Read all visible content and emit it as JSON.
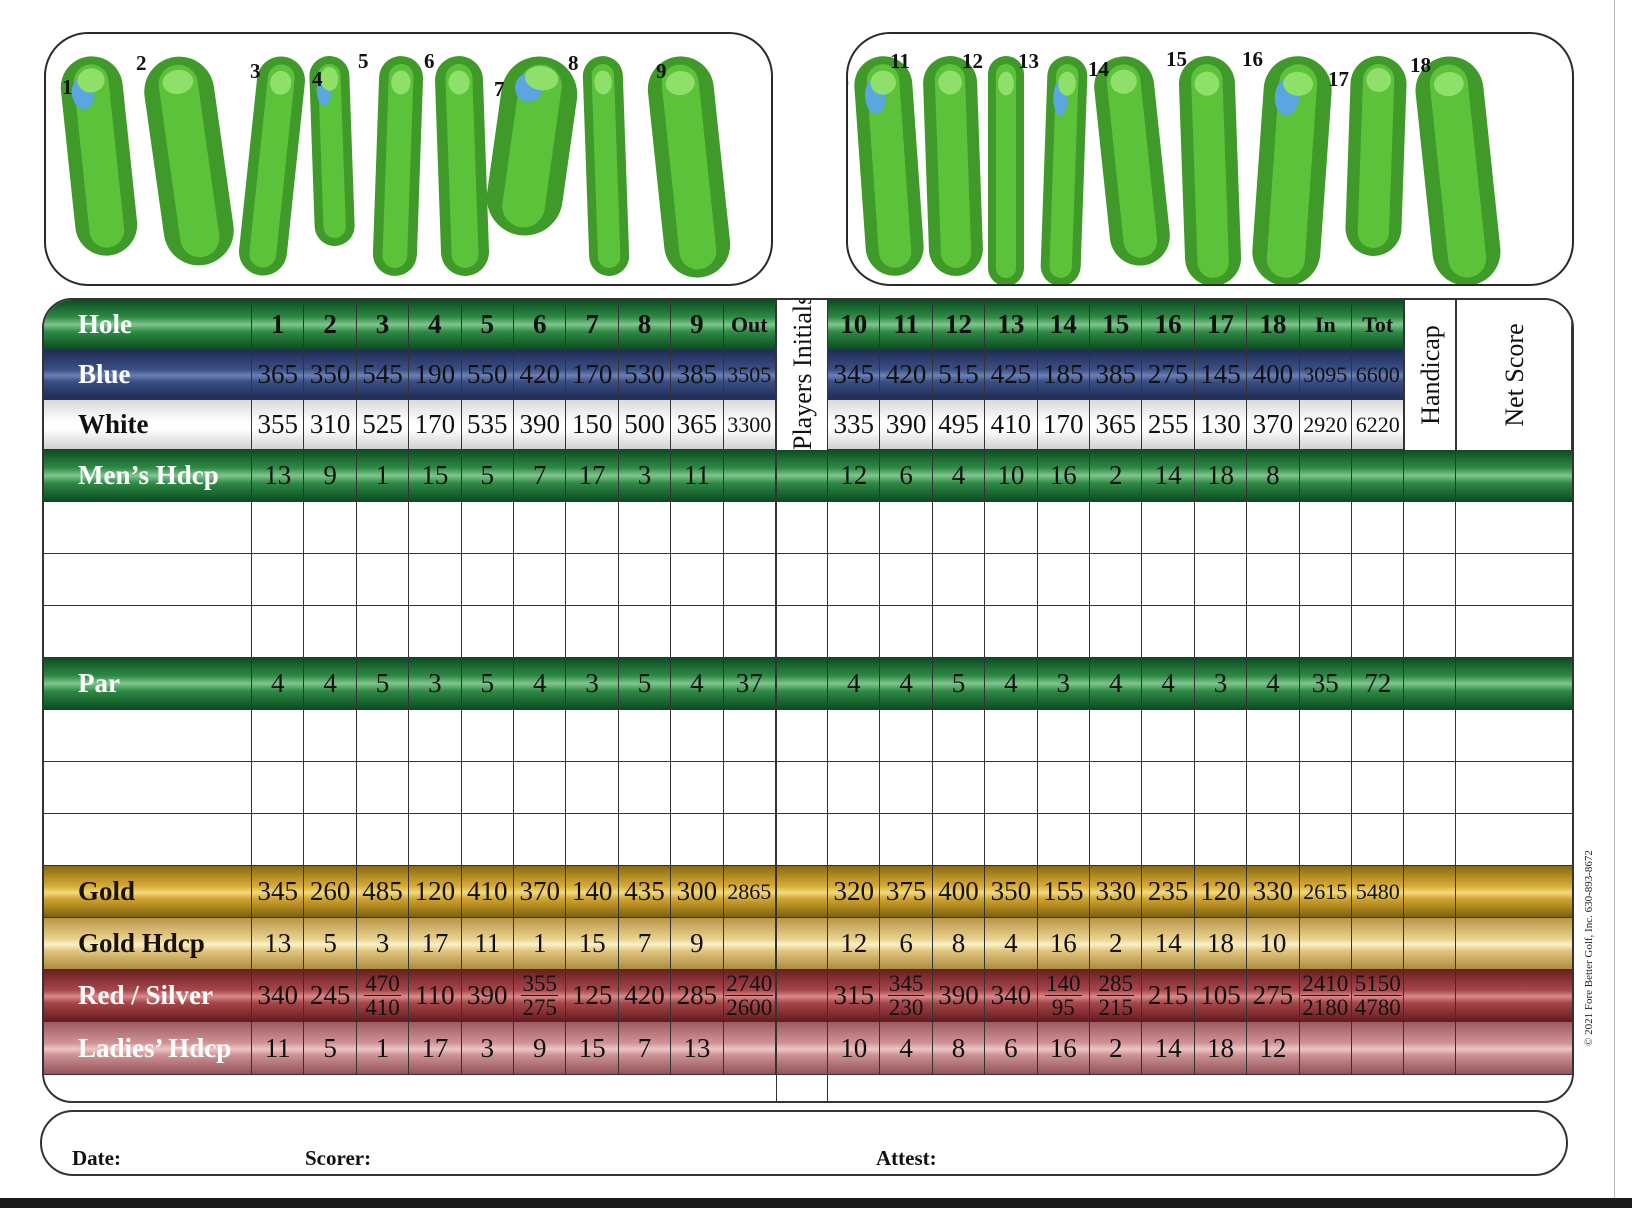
{
  "holes_front_labels": [
    "1",
    "2",
    "3",
    "4",
    "5",
    "6",
    "7",
    "8",
    "9"
  ],
  "holes_back_labels": [
    "10",
    "11",
    "12",
    "13",
    "14",
    "15",
    "16",
    "17",
    "18"
  ],
  "header": {
    "hole": "Hole",
    "front": [
      "1",
      "2",
      "3",
      "4",
      "5",
      "6",
      "7",
      "8",
      "9"
    ],
    "out": "Out",
    "back": [
      "10",
      "11",
      "12",
      "13",
      "14",
      "15",
      "16",
      "17",
      "18"
    ],
    "in": "In",
    "tot": "Tot"
  },
  "players_initials": "Players Initials",
  "handicap": "Handicap",
  "net_score": "Net Score",
  "rows": {
    "blue": {
      "label": "Blue",
      "front": [
        "365",
        "350",
        "545",
        "190",
        "550",
        "420",
        "170",
        "530",
        "385"
      ],
      "out": "3505",
      "back": [
        "345",
        "420",
        "515",
        "425",
        "185",
        "385",
        "275",
        "145",
        "400"
      ],
      "in": "3095",
      "tot": "6600"
    },
    "white": {
      "label": "White",
      "front": [
        "355",
        "310",
        "525",
        "170",
        "535",
        "390",
        "150",
        "500",
        "365"
      ],
      "out": "3300",
      "back": [
        "335",
        "390",
        "495",
        "410",
        "170",
        "365",
        "255",
        "130",
        "370"
      ],
      "in": "2920",
      "tot": "6220"
    },
    "mens_hdcp": {
      "label": "Men’s Hdcp",
      "front": [
        "13",
        "9",
        "1",
        "15",
        "5",
        "7",
        "17",
        "3",
        "11"
      ],
      "out": "",
      "back": [
        "12",
        "6",
        "4",
        "10",
        "16",
        "2",
        "14",
        "18",
        "8"
      ],
      "in": "",
      "tot": ""
    },
    "par": {
      "label": "Par",
      "front": [
        "4",
        "4",
        "5",
        "3",
        "5",
        "4",
        "3",
        "5",
        "4"
      ],
      "out": "37",
      "back": [
        "4",
        "4",
        "5",
        "4",
        "3",
        "4",
        "4",
        "3",
        "4"
      ],
      "in": "35",
      "tot": "72"
    },
    "gold": {
      "label": "Gold",
      "front": [
        "345",
        "260",
        "485",
        "120",
        "410",
        "370",
        "140",
        "435",
        "300"
      ],
      "out": "2865",
      "back": [
        "320",
        "375",
        "400",
        "350",
        "155",
        "330",
        "235",
        "120",
        "330"
      ],
      "in": "2615",
      "tot": "5480"
    },
    "gold_hdcp": {
      "label": "Gold Hdcp",
      "front": [
        "13",
        "5",
        "3",
        "17",
        "11",
        "1",
        "15",
        "7",
        "9"
      ],
      "out": "",
      "back": [
        "12",
        "6",
        "8",
        "4",
        "16",
        "2",
        "14",
        "18",
        "10"
      ],
      "in": "",
      "tot": ""
    },
    "red_silver": {
      "label": "Red / Silver",
      "front": [
        "340",
        "245",
        "470/410",
        "110",
        "390",
        "355/275",
        "125",
        "420",
        "285"
      ],
      "out": "2740/2600",
      "back": [
        "315",
        "345/230",
        "390",
        "340",
        "140/95",
        "285/215",
        "215",
        "105",
        "275"
      ],
      "in": "2410/2180",
      "tot": "5150/4780"
    },
    "ladies_hdcp": {
      "label": "Ladies’ Hdcp",
      "front": [
        "11",
        "5",
        "1",
        "17",
        "3",
        "9",
        "15",
        "7",
        "13"
      ],
      "out": "",
      "back": [
        "10",
        "4",
        "8",
        "6",
        "16",
        "2",
        "14",
        "18",
        "12"
      ],
      "in": "",
      "tot": ""
    }
  },
  "footer": {
    "date": "Date:",
    "scorer": "Scorer:",
    "attest": "Attest:"
  },
  "copyright": "© 2021 Fore Better Golf, Inc. 630-893-8672",
  "colors": {
    "green": "#1f7a3a",
    "blue": "#34467a",
    "gold": "#d4a834",
    "gold_hdcp": "#e9d08c",
    "red": "#a9484c",
    "pink": "#cf9396",
    "water": "#5aa6e0",
    "fairway": "#5cc23a"
  }
}
